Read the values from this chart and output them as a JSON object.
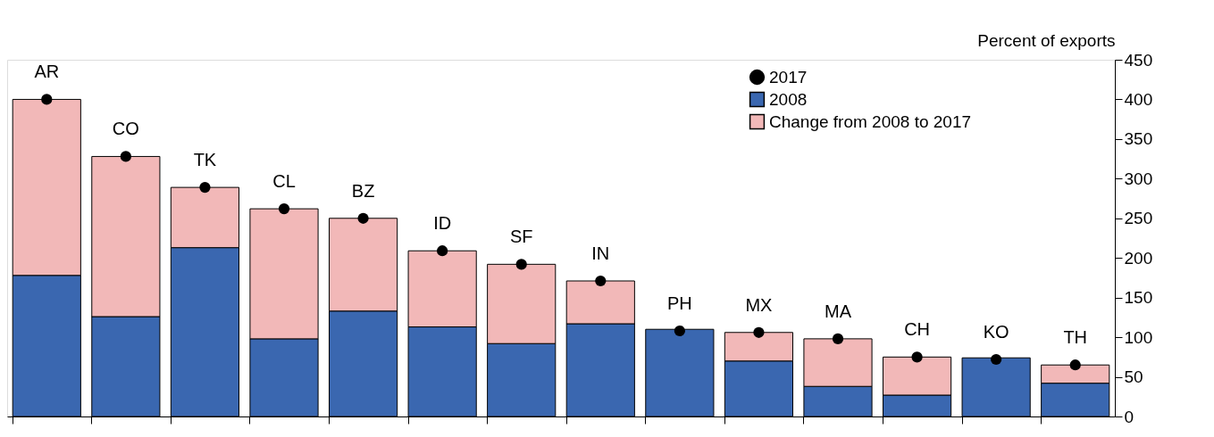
{
  "chart_data": {
    "type": "bar",
    "stacked": true,
    "ylabel": "Percent of exports",
    "categories": [
      "AR",
      "CO",
      "TK",
      "CL",
      "BZ",
      "ID",
      "SF",
      "IN",
      "PH",
      "MX",
      "MA",
      "CH",
      "KO",
      "TH"
    ],
    "series": [
      {
        "name": "2008",
        "color": "#3a67b0",
        "values": [
          178,
          126,
          213,
          98,
          133,
          113,
          92,
          117,
          110,
          70,
          38,
          27,
          74,
          42
        ]
      },
      {
        "name": "Change from 2008 to 2017",
        "color": "#f2b8b8",
        "values": [
          222,
          202,
          76,
          164,
          117,
          96,
          100,
          54,
          0,
          36,
          60,
          48,
          0,
          23
        ]
      },
      {
        "name": "2017",
        "type": "scatter",
        "color": "#000000",
        "values": [
          400,
          328,
          289,
          262,
          250,
          209,
          192,
          171,
          108,
          106,
          98,
          75,
          72,
          65
        ]
      }
    ],
    "ylim": [
      0,
      450
    ],
    "yticks": [
      0,
      50,
      100,
      150,
      200,
      250,
      300,
      350,
      400,
      450
    ],
    "grid": false,
    "legend": "top right",
    "tick_labels": "y",
    "marker": "circle"
  }
}
